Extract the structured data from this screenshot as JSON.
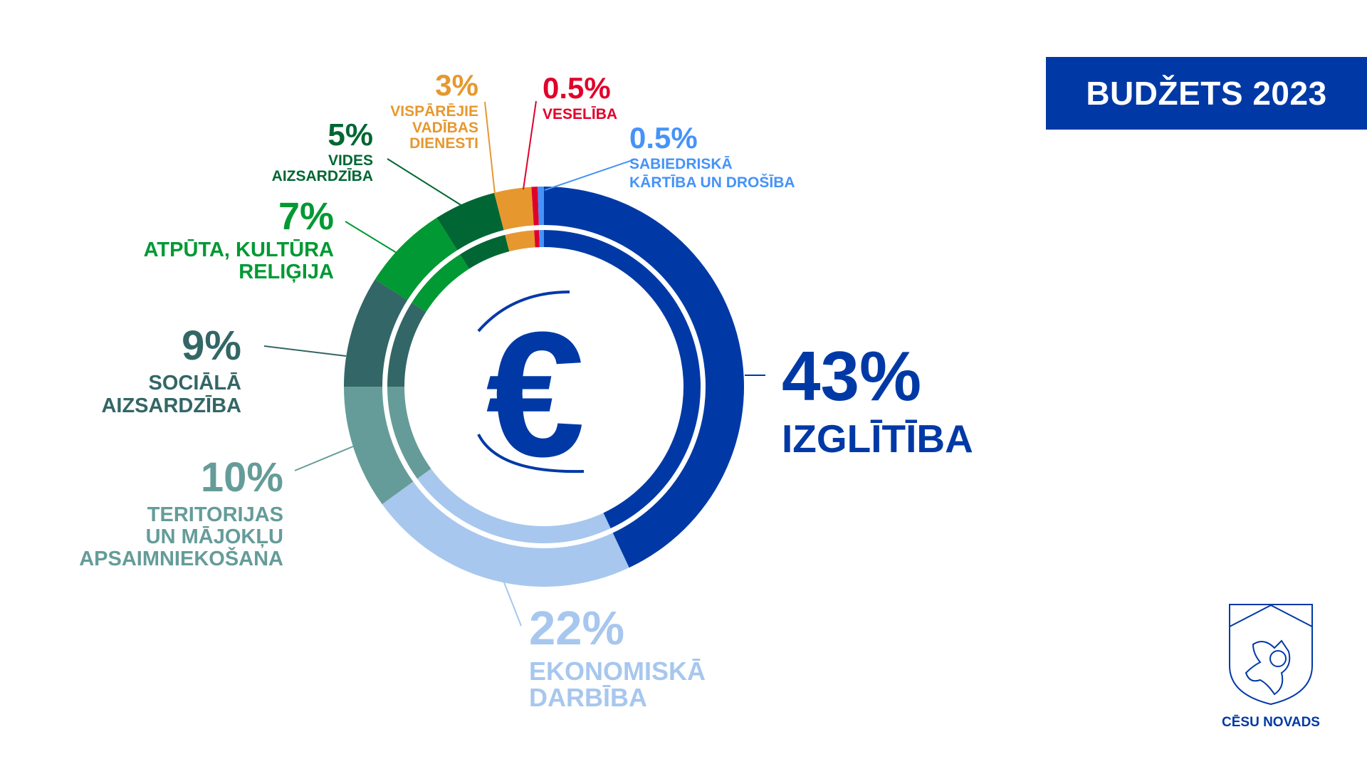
{
  "chart_data": {
    "type": "pie",
    "variant": "double-ring donut",
    "title": "BUDŽETS 2023",
    "slices": [
      {
        "pct_label": "43%",
        "value": 43,
        "label": [
          "IZGLĪTĪBA"
        ],
        "color": "#0039a6"
      },
      {
        "pct_label": "22%",
        "value": 22,
        "label": [
          "EKONOMISKĀ",
          "DARBĪBA"
        ],
        "color": "#a7c7ee"
      },
      {
        "pct_label": "10%",
        "value": 10,
        "label": [
          "TERITORIJAS",
          "UN MĀJOKĻU",
          "APSAIMNIEKOŠANA"
        ],
        "color": "#659c99"
      },
      {
        "pct_label": "9%",
        "value": 9,
        "label": [
          "SOCIĀLĀ",
          "AIZSARDZĪBA"
        ],
        "color": "#336666"
      },
      {
        "pct_label": "7%",
        "value": 7,
        "label": [
          "ATPŪTA, KULTŪRA",
          "RELIĢIJA"
        ],
        "color": "#009933"
      },
      {
        "pct_label": "5%",
        "value": 5,
        "label": [
          "VIDES",
          "AIZSARDZĪBA"
        ],
        "color": "#006633"
      },
      {
        "pct_label": "3%",
        "value": 3,
        "label": [
          "VISPĀRĒJIE",
          "VADĪBAS",
          "DIENESTI"
        ],
        "color": "#e6982e"
      },
      {
        "pct_label": "0.5%",
        "value": 0.5,
        "label": [
          "VESELĪBA"
        ],
        "color": "#e1002a"
      },
      {
        "pct_label": "0.5%",
        "value": 0.5,
        "label": [
          "SABIEDRISKĀ",
          "KĀRTĪBA UN DROŠĪBA"
        ],
        "color": "#4593f8"
      }
    ]
  },
  "header": {
    "title": "BUDŽETS 2023"
  },
  "logo": {
    "text": "CĒSU NOVADS"
  },
  "center_icon": "euro-icon",
  "colors": {
    "brand": "#0039a6"
  }
}
